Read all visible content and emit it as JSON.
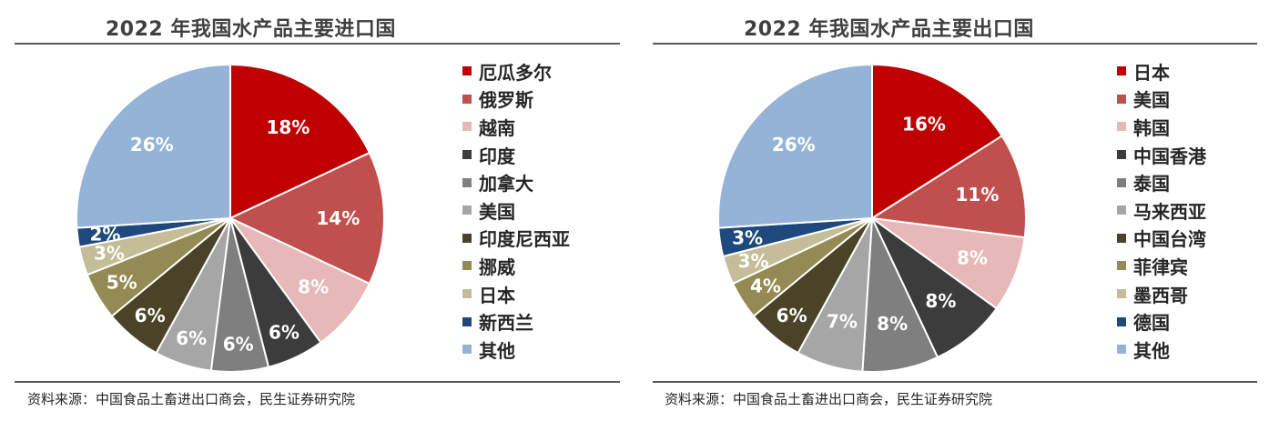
{
  "chart_data": [
    {
      "type": "pie",
      "title": "2022 年我国水产品主要进口国",
      "categories": [
        "厄瓜多尔",
        "俄罗斯",
        "越南",
        "印度",
        "加拿大",
        "美国",
        "印度尼西亚",
        "挪威",
        "日本",
        "新西兰",
        "其他"
      ],
      "values": [
        18,
        14,
        8,
        6,
        6,
        6,
        6,
        5,
        3,
        2,
        26
      ],
      "value_labels": [
        "18%",
        "14%",
        "8%",
        "6%",
        "6%",
        "6%",
        "6%",
        "5%",
        "3%",
        "2%",
        "26%"
      ],
      "colors": [
        "#C00000",
        "#C0504D",
        "#E6B9B8",
        "#3C3C3C",
        "#7F7F7F",
        "#A6A6A6",
        "#4A4328",
        "#948A54",
        "#C4BD97",
        "#1F497D",
        "#95B3D7"
      ],
      "label_colors": [
        "#ffffff",
        "#ffffff",
        "#ffffff",
        "#ffffff",
        "#ffffff",
        "#ffffff",
        "#ffffff",
        "#ffffff",
        "#ffffff",
        "#ffffff",
        "#ffffff"
      ],
      "legend_position": "right",
      "source": "资料来源：中国食品土畜进出口商会，民生证券研究院"
    },
    {
      "type": "pie",
      "title": "2022 年我国水产品主要出口国",
      "categories": [
        "日本",
        "美国",
        "韩国",
        "中国香港",
        "泰国",
        "马来西亚",
        "中国台湾",
        "菲律宾",
        "墨西哥",
        "德国",
        "其他"
      ],
      "values": [
        16,
        11,
        8,
        8,
        8,
        7,
        6,
        4,
        3,
        3,
        26
      ],
      "value_labels": [
        "16%",
        "11%",
        "8%",
        "8%",
        "8%",
        "7%",
        "6%",
        "4%",
        "3%",
        "3%",
        "26%"
      ],
      "colors": [
        "#C00000",
        "#C0504D",
        "#E6B9B8",
        "#3C3C3C",
        "#7F7F7F",
        "#A6A6A6",
        "#4A4328",
        "#948A54",
        "#C4BD97",
        "#1F497D",
        "#95B3D7"
      ],
      "label_colors": [
        "#ffffff",
        "#ffffff",
        "#ffffff",
        "#ffffff",
        "#ffffff",
        "#ffffff",
        "#ffffff",
        "#ffffff",
        "#ffffff",
        "#ffffff",
        "#ffffff"
      ],
      "legend_position": "right",
      "source": "资料来源：中国食品土畜进出口商会，民生证券研究院"
    }
  ]
}
